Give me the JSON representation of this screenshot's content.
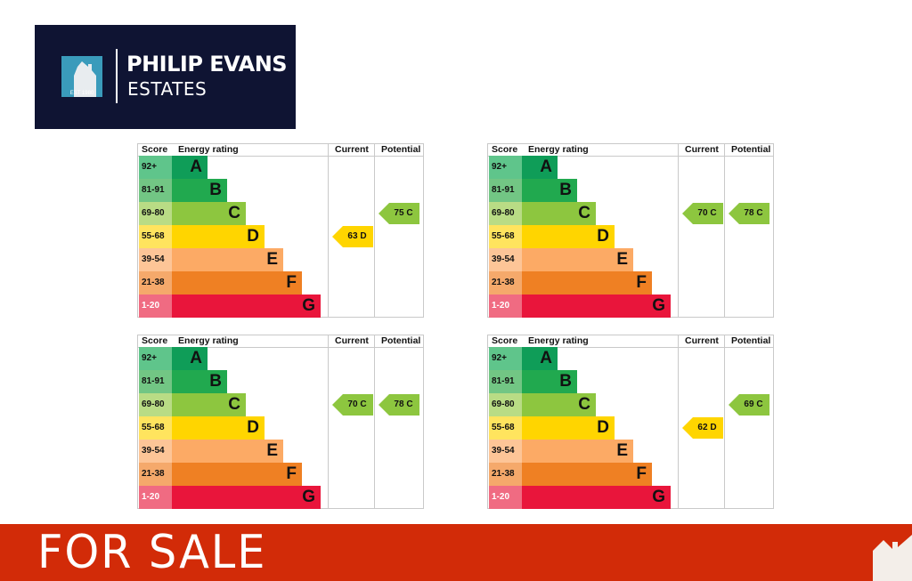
{
  "brand": {
    "name": "PHILIP EVANS",
    "subtitle": "ESTATES",
    "established": "EST 1980",
    "colors": {
      "navy": "#0f1433",
      "teal": "#3a9bbb",
      "red": "#d22b08"
    }
  },
  "epc_table": {
    "headers": {
      "score": "Score",
      "energy_rating": "Energy rating",
      "current": "Current",
      "potential": "Potential"
    },
    "bands": [
      {
        "score": "92+",
        "letter": "A",
        "color": "#0f9d58",
        "score_color": "#5fc58b"
      },
      {
        "score": "81-91",
        "letter": "B",
        "color": "#21a94f",
        "score_color": "#72c684"
      },
      {
        "score": "69-80",
        "letter": "C",
        "color": "#8dc63f",
        "score_color": "#b9dc85"
      },
      {
        "score": "55-68",
        "letter": "D",
        "color": "#ffd500",
        "score_color": "#ffe45e"
      },
      {
        "score": "39-54",
        "letter": "E",
        "color": "#fcaa65",
        "score_color": "#fdc597"
      },
      {
        "score": "21-38",
        "letter": "F",
        "color": "#ef8023",
        "score_color": "#f5a96b"
      },
      {
        "score": "1-20",
        "letter": "G",
        "color": "#e9153b",
        "score_color": "#f06b82"
      }
    ]
  },
  "charts": [
    {
      "current": {
        "value": "63",
        "letter": "D"
      },
      "potential": {
        "value": "75",
        "letter": "C"
      }
    },
    {
      "current": {
        "value": "70",
        "letter": "C"
      },
      "potential": {
        "value": "78",
        "letter": "C"
      }
    },
    {
      "current": {
        "value": "70",
        "letter": "C"
      },
      "potential": {
        "value": "78",
        "letter": "C"
      }
    },
    {
      "current": {
        "value": "62",
        "letter": "D"
      },
      "potential": {
        "value": "69",
        "letter": "C"
      }
    }
  ],
  "footer": {
    "text": "FOR SALE"
  }
}
